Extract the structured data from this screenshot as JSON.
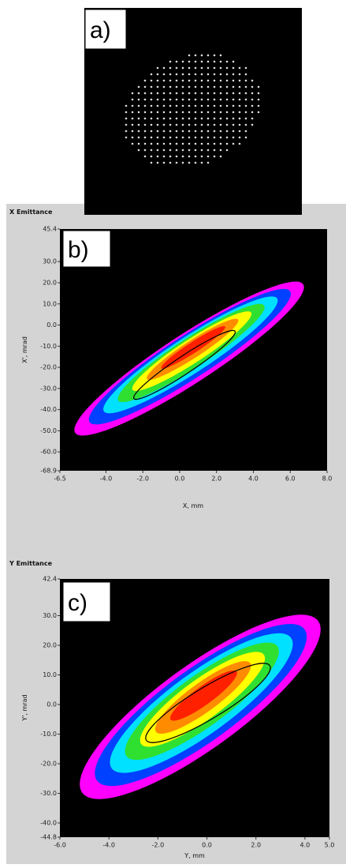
{
  "panels": [
    {
      "label": "a)"
    },
    {
      "label": "b)",
      "title": "X Emittance",
      "x_label": "X, mm",
      "y_label": "X', mrad",
      "xticks": [
        "-6.5",
        "-4.0",
        "-2.0",
        "0.0",
        "2.0",
        "4.0",
        "6.0",
        "8.0"
      ],
      "yticks": [
        "45.4",
        "30.0",
        "20.0",
        "10.0",
        "0.0",
        "-10.0",
        "-20.0",
        "-30.0",
        "-40.0",
        "-50.0",
        "-60.0",
        "-68.9"
      ]
    },
    {
      "label": "c)",
      "title": "Y Emittance",
      "x_label": "Y, mm",
      "y_label": "Y', mrad",
      "xticks": [
        "-6.0",
        "-4.0",
        "-2.0",
        "0.0",
        "2.0",
        "4.0",
        "5.0"
      ],
      "yticks": [
        "42.4",
        "30.0",
        "20.0",
        "10.0",
        "0.0",
        "-10.0",
        "-20.0",
        "-30.0",
        "-40.0",
        "-44.8"
      ]
    }
  ]
}
